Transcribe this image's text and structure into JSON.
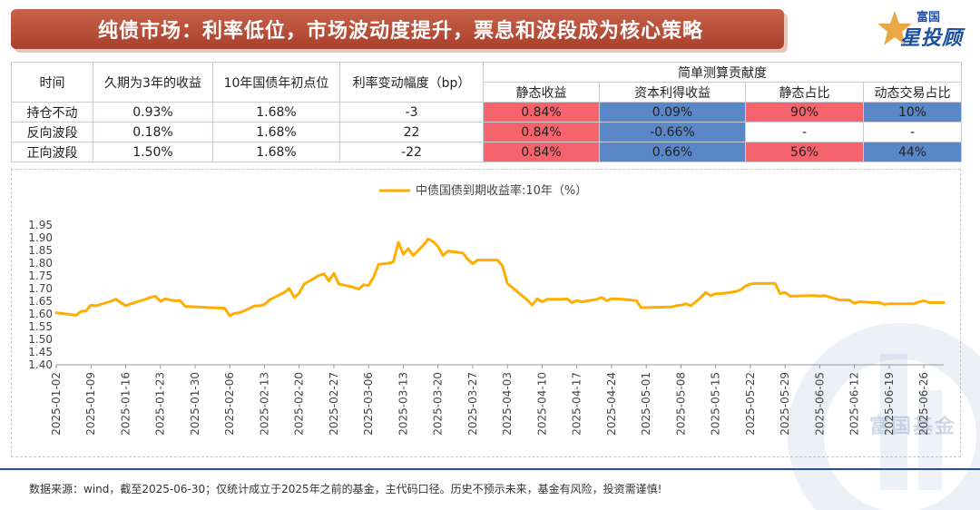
{
  "header": {
    "title": "纯债市场：利率低位，市场波动度提升，票息和波段成为核心策略",
    "brand_top": "富国",
    "brand_main": "星投顾"
  },
  "table": {
    "headers": {
      "time": "时间",
      "yield3": "久期为3年的收益",
      "start10": "10年国债年初点位",
      "change": "利率变动幅度（bp）",
      "group": "简单测算贡献度",
      "static_income": "静态收益",
      "capital_gain": "资本利得收益",
      "static_share": "静态占比",
      "trading_share": "动态交易占比"
    },
    "rows": [
      {
        "name": "持仓不动",
        "yield3": "0.93%",
        "start10": "1.68%",
        "change": "-3",
        "static_income": "0.84%",
        "capital_gain": "0.09%",
        "static_share": "90%",
        "trading_share": "10%"
      },
      {
        "name": "反向波段",
        "yield3": "0.18%",
        "start10": "1.68%",
        "change": "22",
        "static_income": "0.84%",
        "capital_gain": "-0.66%",
        "static_share": "-",
        "trading_share": "-"
      },
      {
        "name": "正向波段",
        "yield3": "1.50%",
        "start10": "1.68%",
        "change": "-22",
        "static_income": "0.84%",
        "capital_gain": "0.66%",
        "static_share": "56%",
        "trading_share": "44%"
      }
    ],
    "colors": {
      "red": "#f5646c",
      "blue": "#5a87c8"
    }
  },
  "chart_data": {
    "type": "line",
    "title": "",
    "series": [
      {
        "name": "中债国债到期收益率:10年（%）",
        "color": "#ffae00",
        "points": [
          [
            "2025-01-02",
            1.605
          ],
          [
            "2025-01-06",
            1.595
          ],
          [
            "2025-01-07",
            1.61
          ],
          [
            "2025-01-08",
            1.612
          ],
          [
            "2025-01-09",
            1.635
          ],
          [
            "2025-01-10",
            1.632
          ],
          [
            "2025-01-13",
            1.65
          ],
          [
            "2025-01-14",
            1.658
          ],
          [
            "2025-01-15",
            1.645
          ],
          [
            "2025-01-16",
            1.632
          ],
          [
            "2025-01-17",
            1.64
          ],
          [
            "2025-01-20",
            1.658
          ],
          [
            "2025-01-21",
            1.665
          ],
          [
            "2025-01-22",
            1.67
          ],
          [
            "2025-01-23",
            1.65
          ],
          [
            "2025-01-24",
            1.66
          ],
          [
            "2025-01-25",
            1.655
          ],
          [
            "2025-01-26",
            1.653
          ],
          [
            "2025-01-27",
            1.652
          ],
          [
            "2025-01-28",
            1.63
          ],
          [
            "2025-02-05",
            1.622
          ],
          [
            "2025-02-06",
            1.593
          ],
          [
            "2025-02-07",
            1.603
          ],
          [
            "2025-02-08",
            1.605
          ],
          [
            "2025-02-10",
            1.622
          ],
          [
            "2025-02-11",
            1.632
          ],
          [
            "2025-02-12",
            1.632
          ],
          [
            "2025-02-13",
            1.638
          ],
          [
            "2025-02-14",
            1.655
          ],
          [
            "2025-02-17",
            1.685
          ],
          [
            "2025-02-18",
            1.7
          ],
          [
            "2025-02-19",
            1.665
          ],
          [
            "2025-02-20",
            1.682
          ],
          [
            "2025-02-21",
            1.718
          ],
          [
            "2025-02-24",
            1.752
          ],
          [
            "2025-02-25",
            1.758
          ],
          [
            "2025-02-26",
            1.73
          ],
          [
            "2025-02-27",
            1.76
          ],
          [
            "2025-02-28",
            1.718
          ],
          [
            "2025-03-03",
            1.705
          ],
          [
            "2025-03-04",
            1.698
          ],
          [
            "2025-03-05",
            1.715
          ],
          [
            "2025-03-06",
            1.712
          ],
          [
            "2025-03-07",
            1.745
          ],
          [
            "2025-03-08",
            1.795
          ],
          [
            "2025-03-10",
            1.8
          ],
          [
            "2025-03-11",
            1.805
          ],
          [
            "2025-03-12",
            1.882
          ],
          [
            "2025-03-13",
            1.835
          ],
          [
            "2025-03-14",
            1.857
          ],
          [
            "2025-03-15",
            1.83
          ],
          [
            "2025-03-17",
            1.87
          ],
          [
            "2025-03-18",
            1.895
          ],
          [
            "2025-03-19",
            1.885
          ],
          [
            "2025-03-20",
            1.865
          ],
          [
            "2025-03-21",
            1.83
          ],
          [
            "2025-03-22",
            1.848
          ],
          [
            "2025-03-24",
            1.843
          ],
          [
            "2025-03-25",
            1.84
          ],
          [
            "2025-03-26",
            1.815
          ],
          [
            "2025-03-27",
            1.798
          ],
          [
            "2025-03-28",
            1.812
          ],
          [
            "2025-03-31",
            1.812
          ],
          [
            "2025-04-01",
            1.812
          ],
          [
            "2025-04-02",
            1.79
          ],
          [
            "2025-04-03",
            1.72
          ],
          [
            "2025-04-07",
            1.655
          ],
          [
            "2025-04-08",
            1.635
          ],
          [
            "2025-04-09",
            1.66
          ],
          [
            "2025-04-10",
            1.648
          ],
          [
            "2025-04-11",
            1.658
          ],
          [
            "2025-04-14",
            1.658
          ],
          [
            "2025-04-15",
            1.66
          ],
          [
            "2025-04-16",
            1.645
          ],
          [
            "2025-04-17",
            1.652
          ],
          [
            "2025-04-18",
            1.648
          ],
          [
            "2025-04-21",
            1.658
          ],
          [
            "2025-04-22",
            1.665
          ],
          [
            "2025-04-23",
            1.652
          ],
          [
            "2025-04-24",
            1.66
          ],
          [
            "2025-04-25",
            1.66
          ],
          [
            "2025-04-28",
            1.655
          ],
          [
            "2025-04-29",
            1.652
          ],
          [
            "2025-04-30",
            1.625
          ],
          [
            "2025-05-06",
            1.628
          ],
          [
            "2025-05-07",
            1.632
          ],
          [
            "2025-05-08",
            1.635
          ],
          [
            "2025-05-09",
            1.64
          ],
          [
            "2025-05-10",
            1.632
          ],
          [
            "2025-05-12",
            1.665
          ],
          [
            "2025-05-13",
            1.685
          ],
          [
            "2025-05-14",
            1.672
          ],
          [
            "2025-05-15",
            1.68
          ],
          [
            "2025-05-16",
            1.68
          ],
          [
            "2025-05-19",
            1.688
          ],
          [
            "2025-05-20",
            1.695
          ],
          [
            "2025-05-21",
            1.71
          ],
          [
            "2025-05-22",
            1.718
          ],
          [
            "2025-05-23",
            1.72
          ],
          [
            "2025-05-26",
            1.72
          ],
          [
            "2025-05-27",
            1.72
          ],
          [
            "2025-05-28",
            1.68
          ],
          [
            "2025-05-29",
            1.685
          ],
          [
            "2025-05-30",
            1.67
          ],
          [
            "2025-06-03",
            1.672
          ],
          [
            "2025-06-04",
            1.672
          ],
          [
            "2025-06-05",
            1.67
          ],
          [
            "2025-06-06",
            1.672
          ],
          [
            "2025-06-09",
            1.655
          ],
          [
            "2025-06-10",
            1.655
          ],
          [
            "2025-06-11",
            1.655
          ],
          [
            "2025-06-12",
            1.642
          ],
          [
            "2025-06-13",
            1.648
          ],
          [
            "2025-06-16",
            1.645
          ],
          [
            "2025-06-17",
            1.645
          ],
          [
            "2025-06-18",
            1.638
          ],
          [
            "2025-06-19",
            1.64
          ],
          [
            "2025-06-20",
            1.64
          ],
          [
            "2025-06-23",
            1.64
          ],
          [
            "2025-06-24",
            1.64
          ],
          [
            "2025-06-25",
            1.648
          ],
          [
            "2025-06-26",
            1.652
          ],
          [
            "2025-06-27",
            1.645
          ],
          [
            "2025-06-30",
            1.645
          ]
        ]
      }
    ],
    "x_ticks": [
      "2025-01-02",
      "2025-01-09",
      "2025-01-16",
      "2025-01-23",
      "2025-01-30",
      "2025-02-06",
      "2025-02-13",
      "2025-02-20",
      "2025-02-27",
      "2025-03-06",
      "2025-03-13",
      "2025-03-20",
      "2025-03-27",
      "2025-04-03",
      "2025-04-10",
      "2025-04-17",
      "2025-04-24",
      "2025-05-01",
      "2025-05-08",
      "2025-05-15",
      "2025-05-22",
      "2025-05-29",
      "2025-06-05",
      "2025-06-12",
      "2025-06-19",
      "2025-06-26"
    ],
    "y_ticks": [
      "1.95",
      "1.90",
      "1.85",
      "1.80",
      "1.75",
      "1.70",
      "1.65",
      "1.60",
      "1.55",
      "1.50",
      "1.45",
      "1.40"
    ],
    "xlim": [
      "2025-01-02",
      "2025-06-30"
    ],
    "ylim": [
      1.4,
      1.95
    ],
    "grid": false,
    "legend": "top-center"
  },
  "watermark": {
    "text": "富国基金"
  },
  "footer": {
    "text": "数据来源：wind，截至2025-06-30；仅统计成立于2025年之前的基金，主代码口径。历史不预示未来，基金有风险，投资需谨慎!"
  }
}
